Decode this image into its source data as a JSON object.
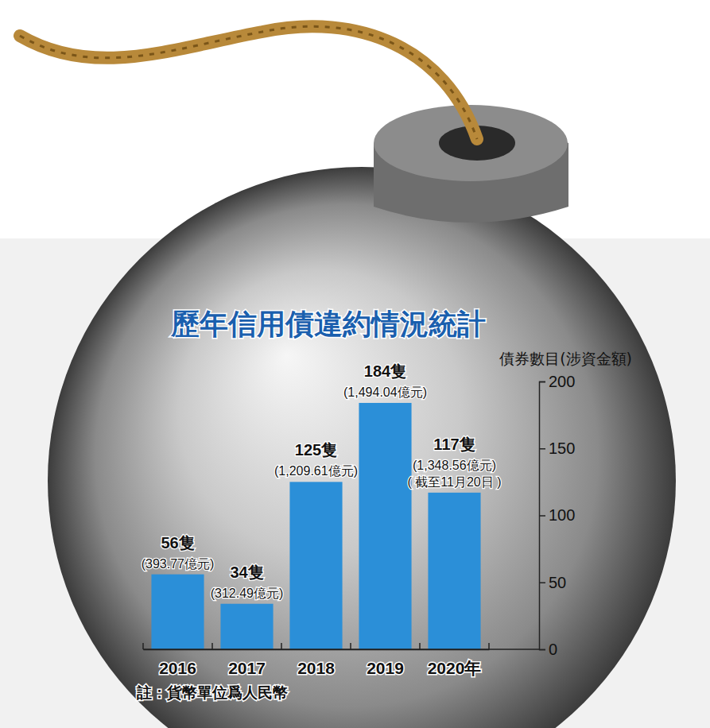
{
  "chart_data": {
    "type": "bar",
    "title": "歷年信用債違約情況統計",
    "y_label": "債券數目(涉資金額)",
    "categories": [
      "2016",
      "2017",
      "2018",
      "2019",
      "2020年"
    ],
    "values": [
      56,
      34,
      125,
      184,
      117
    ],
    "value_labels": [
      "56隻",
      "34隻",
      "125隻",
      "184隻",
      "117隻"
    ],
    "amount_labels": [
      "(393.77億元)",
      "(312.49億元)",
      "(1,209.61億元)",
      "(1,494.04億元)",
      "(1,348.56億元)"
    ],
    "annotations": [
      {
        "category": "2020年",
        "text": "( 截至11月20日 )"
      }
    ],
    "footnote": "註：貨幣單位爲人民幣",
    "color": "#2b8fd8",
    "ylim": [
      0,
      200
    ],
    "yticks": [
      0,
      50,
      100,
      150,
      200
    ],
    "grid": false,
    "data_labels": true
  }
}
